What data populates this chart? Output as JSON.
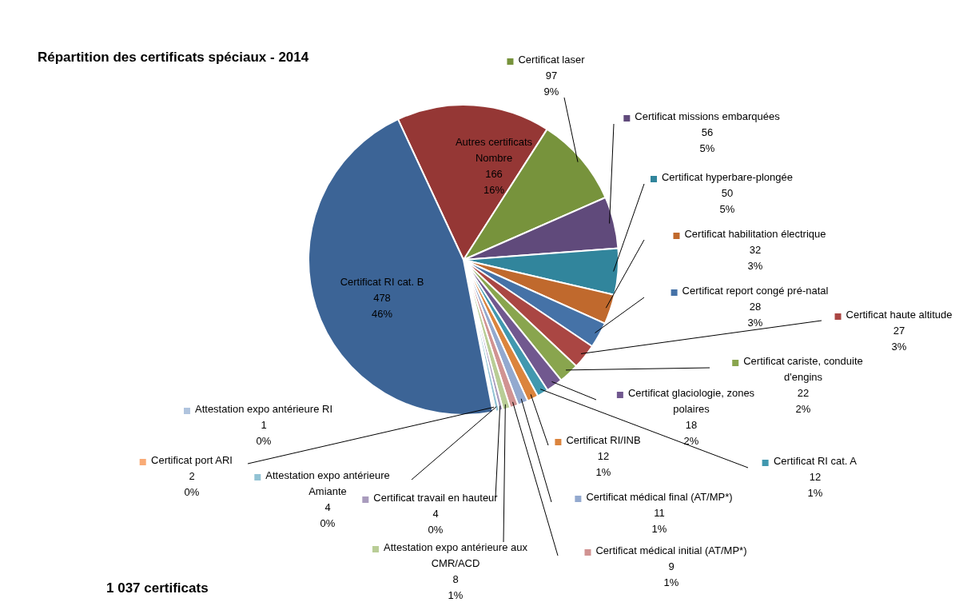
{
  "chart_data": {
    "type": "pie",
    "title": "Répartition des certificats spéciaux - 2014",
    "categories": [
      "Autres certificats\nNombre",
      "Certificat laser",
      "Certificat missions embarquées",
      "Certificat hyperbare-plongée",
      "Certificat habilitation électrique",
      "Certificat report congé pré-natal",
      "Certificat haute altitude",
      "Certificat cariste, conduite d'engins",
      "Certificat glaciologie, zones polaires",
      "Certificat RI cat. A",
      "Certificat RI/INB",
      "Certificat médical final (AT/MP*)",
      "Certificat médical initial (AT/MP*)",
      "Attestation expo antérieure aux CMR/ACD",
      "Certificat travail en hauteur",
      "Attestation expo antérieure Amiante",
      "Certificat port ARI",
      "Attestation expo antérieure RI",
      "Certificat RI cat. B"
    ],
    "values": [
      166,
      97,
      56,
      50,
      32,
      28,
      27,
      22,
      18,
      12,
      12,
      11,
      9,
      8,
      4,
      4,
      2,
      1,
      478
    ],
    "value_labels": [
      "166\n16%",
      "97\n9%",
      "56\n5%",
      "50\n5%",
      "32\n3%",
      "28\n3%",
      "27\n3%",
      "22\n2%",
      "18\n2%",
      "12\n1%",
      "12\n1%",
      "11\n1%",
      "9\n1%",
      "8\n1%",
      "4\n0%",
      "4\n0%",
      "2\n0%",
      "1\n0%",
      "478\n46%"
    ],
    "colors": [
      "#953735",
      "#77933c",
      "#604a7b",
      "#31859c",
      "#c0692d",
      "#4572a7",
      "#aa4643",
      "#89a54e",
      "#71588f",
      "#4198af",
      "#db843d",
      "#93a9cf",
      "#d19392",
      "#b9cd96",
      "#a99bbd",
      "#92c3d4",
      "#f9ab76",
      "#b0c4de",
      "#3c6496"
    ],
    "legend": "right",
    "annotations": [
      "1 037 certificats"
    ]
  }
}
